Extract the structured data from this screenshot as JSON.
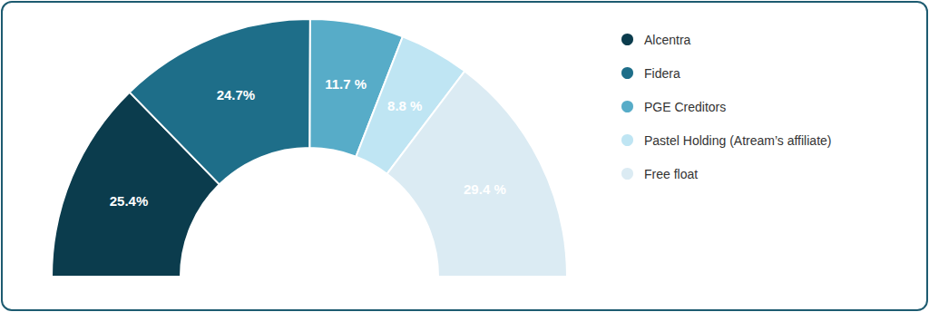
{
  "chart_data": {
    "type": "pie",
    "categories": [
      "Alcentra",
      "Fidera",
      "PGE Creditors",
      "Pastel Holding (Atream’s affiliate)",
      "Free float"
    ],
    "values": [
      25.4,
      24.7,
      11.7,
      8.8,
      29.4
    ],
    "value_labels": [
      "25.4%",
      "24.7%",
      "11.7 %",
      "8.8 %",
      "29.4 %"
    ],
    "colors": [
      "#0b3c4d",
      "#1e6e89",
      "#57acc8",
      "#bfe5f3",
      "#dbebf3"
    ],
    "data_labels": true,
    "legend": "right"
  }
}
